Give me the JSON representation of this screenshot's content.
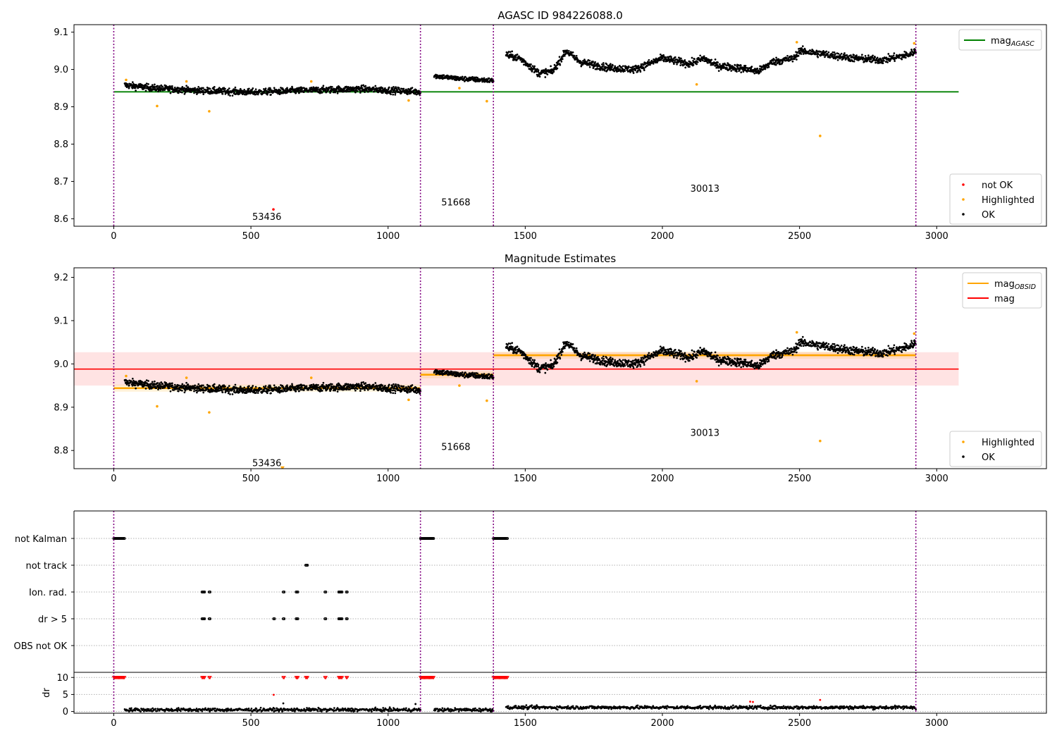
{
  "figure": {
    "title_top": "AGASC ID 984226088.0",
    "title_mid": "Magnitude Estimates"
  },
  "colors": {
    "ok": "#000000",
    "highlighted": "#ffa500",
    "not_ok": "#ff0000",
    "agasc_line": "#008000",
    "mag_line": "#ff0000",
    "mag_obsid_line": "#ffa500",
    "obs_boundary": "#800080",
    "mag_band": "#ffc0c0",
    "grid": "#b0b0b0"
  },
  "chart_data": [
    {
      "type": "scatter",
      "title": "AGASC ID 984226088.0",
      "xlim": [
        -145,
        3400
      ],
      "ylim": [
        8.58,
        9.12
      ],
      "xticks": [
        0,
        500,
        1000,
        1500,
        2000,
        2500,
        3000
      ],
      "yticks": [
        8.6,
        8.7,
        8.8,
        8.9,
        9.0,
        9.1
      ],
      "ytick_labels": [
        "8.6",
        "8.7",
        "8.8",
        "8.9",
        "9.0",
        "9.1"
      ],
      "obs_boundaries": [
        0,
        1118,
        1384,
        2924
      ],
      "obsids": [
        {
          "label": "53436",
          "x": 558,
          "y": 8.605
        },
        {
          "label": "51668",
          "x": 1247,
          "y": 8.643
        },
        {
          "label": "30013",
          "x": 2155,
          "y": 8.68
        }
      ],
      "lines": [
        {
          "name": "mag_AGASC",
          "y": 8.94,
          "x": [
            0,
            3080
          ]
        }
      ],
      "legend_lines": [
        {
          "label": "mag",
          "sub": "AGASC",
          "color_key": "agasc_line"
        }
      ],
      "legend_markers": [
        {
          "label": "not OK",
          "color_key": "not_ok"
        },
        {
          "label": "Highlighted",
          "color_key": "highlighted"
        },
        {
          "label": "OK",
          "color_key": "ok"
        }
      ],
      "series": [
        {
          "name": "OK",
          "segments": [
            {
              "x0": 40,
              "x1": 1118,
              "knots": [
                [
                  40,
                  8.958
                ],
                [
                  150,
                  8.95
                ],
                [
                  300,
                  8.944
                ],
                [
                  500,
                  8.939
                ],
                [
                  700,
                  8.944
                ],
                [
                  900,
                  8.948
                ],
                [
                  1118,
                  8.94
                ]
              ],
              "noise": 0.008
            },
            {
              "x0": 1168,
              "x1": 1384,
              "knots": [
                [
                  1168,
                  8.983
                ],
                [
                  1250,
                  8.976
                ],
                [
                  1384,
                  8.97
                ]
              ],
              "noise": 0.006
            },
            {
              "x0": 1430,
              "x1": 2924,
              "knots": [
                [
                  1430,
                  9.04
                ],
                [
                  1480,
                  9.03
                ],
                [
                  1550,
                  8.99
                ],
                [
                  1600,
                  8.995
                ],
                [
                  1650,
                  9.05
                ],
                [
                  1700,
                  9.02
                ],
                [
                  1800,
                  9.005
                ],
                [
                  1900,
                  9.0
                ],
                [
                  2000,
                  9.03
                ],
                [
                  2100,
                  9.015
                ],
                [
                  2150,
                  9.03
                ],
                [
                  2200,
                  9.01
                ],
                [
                  2300,
                  9.002
                ],
                [
                  2350,
                  8.995
                ],
                [
                  2400,
                  9.02
                ],
                [
                  2480,
                  9.03
                ],
                [
                  2500,
                  9.05
                ],
                [
                  2600,
                  9.04
                ],
                [
                  2700,
                  9.03
                ],
                [
                  2800,
                  9.025
                ],
                [
                  2900,
                  9.04
                ],
                [
                  2924,
                  9.05
                ]
              ],
              "noise": 0.009
            }
          ]
        },
        {
          "name": "Highlighted",
          "x": [
            45,
            158,
            265,
            348,
            720,
            1075,
            1260,
            1360,
            2125,
            2490,
            2575,
            2918
          ],
          "y": [
            8.972,
            8.902,
            8.968,
            8.888,
            8.968,
            8.917,
            8.95,
            8.915,
            8.96,
            9.073,
            8.822,
            9.07
          ]
        },
        {
          "name": "not OK",
          "x": [
            582
          ],
          "y": [
            8.625
          ]
        }
      ]
    },
    {
      "type": "scatter",
      "title": "Magnitude Estimates",
      "xlim": [
        -145,
        3400
      ],
      "ylim": [
        8.758,
        9.222
      ],
      "xticks": [
        0,
        500,
        1000,
        1500,
        2000,
        2500,
        3000
      ],
      "yticks": [
        8.8,
        8.9,
        9.0,
        9.1,
        9.2
      ],
      "ytick_labels": [
        "8.8",
        "8.9",
        "9.0",
        "9.1",
        "9.2"
      ],
      "obs_boundaries": [
        0,
        1118,
        1384,
        2924
      ],
      "obsids": [
        {
          "label": "53436",
          "x": 558,
          "y": 8.77
        },
        {
          "label": "51668",
          "x": 1247,
          "y": 8.808
        },
        {
          "label": "30013",
          "x": 2155,
          "y": 8.84
        }
      ],
      "mag": 8.988,
      "mag_band": [
        8.95,
        9.027
      ],
      "mag_obsid": [
        {
          "x0": 0,
          "x1": 1118,
          "y": 8.944
        },
        {
          "x0": 1118,
          "x1": 1384,
          "y": 8.975
        },
        {
          "x0": 1384,
          "x1": 2924,
          "y": 9.02
        }
      ],
      "legend_lines": [
        {
          "label": "mag",
          "sub": "OBSID",
          "color_key": "mag_obsid_line"
        },
        {
          "label": "mag",
          "sub": "",
          "color_key": "mag_line"
        }
      ],
      "legend_markers": [
        {
          "label": "Highlighted",
          "color_key": "highlighted"
        },
        {
          "label": "OK",
          "color_key": "ok"
        }
      ],
      "series": [
        {
          "name": "OK",
          "segments": "same as panel 1"
        },
        {
          "name": "Highlighted",
          "x": [
            45,
            158,
            265,
            348,
            720,
            1075,
            1260,
            1360,
            2125,
            2490,
            2575,
            2918
          ],
          "y": [
            8.972,
            8.902,
            8.968,
            8.888,
            8.968,
            8.917,
            8.95,
            8.915,
            8.96,
            9.073,
            8.822,
            9.07
          ]
        },
        {
          "name": "Highlighted (off-scale)",
          "x": [
            615
          ],
          "y": [
            8.76
          ]
        }
      ]
    },
    {
      "type": "scatter",
      "xlim": [
        -145,
        3400
      ],
      "category_labels": [
        "not Kalman",
        "not track",
        "Ion. rad.",
        "dr > 5",
        "OBS not OK"
      ],
      "flags": {
        "not Kalman": [
          [
            0,
            40
          ],
          [
            1118,
            1168
          ],
          [
            1384,
            1435
          ]
        ],
        "not track": [
          [
            700,
            707
          ]
        ],
        "Ion. rad.": [
          [
            322,
            332
          ],
          [
            348,
            352
          ],
          [
            618,
            622
          ],
          [
            665,
            672
          ],
          [
            770,
            774
          ],
          [
            820,
            832
          ],
          [
            848,
            852
          ]
        ],
        "dr > 5": [
          [
            322,
            332
          ],
          [
            348,
            352
          ],
          [
            583,
            586
          ],
          [
            618,
            622
          ],
          [
            665,
            672
          ],
          [
            770,
            774
          ],
          [
            820,
            832
          ],
          [
            848,
            852
          ]
        ],
        "OBS not OK": []
      },
      "dr": {
        "ylim": [
          -0.5,
          11.5
        ],
        "yticks": [
          0,
          5,
          10
        ],
        "ytick_labels": [
          "0",
          "5",
          "10"
        ],
        "ylabel": "dr",
        "clipped_at_10": [
          [
            0,
            40
          ],
          [
            322,
            332
          ],
          [
            348,
            352
          ],
          [
            618,
            622
          ],
          [
            665,
            672
          ],
          [
            700,
            707
          ],
          [
            770,
            774
          ],
          [
            820,
            832
          ],
          [
            848,
            852
          ],
          [
            1118,
            1168
          ],
          [
            1384,
            1435
          ]
        ],
        "outliers": [
          [
            583,
            4.9
          ],
          [
            618,
            2.4
          ],
          [
            1100,
            2.2
          ],
          [
            2320,
            2.9
          ],
          [
            2330,
            2.8
          ],
          [
            2575,
            3.4
          ]
        ],
        "baseline": {
          "segments": [
            [
              40,
              1118,
              0.5
            ],
            [
              1168,
              1384,
              0.5
            ],
            [
              1430,
              2924,
              1.2
            ]
          ],
          "noise": 0.35
        }
      }
    }
  ]
}
